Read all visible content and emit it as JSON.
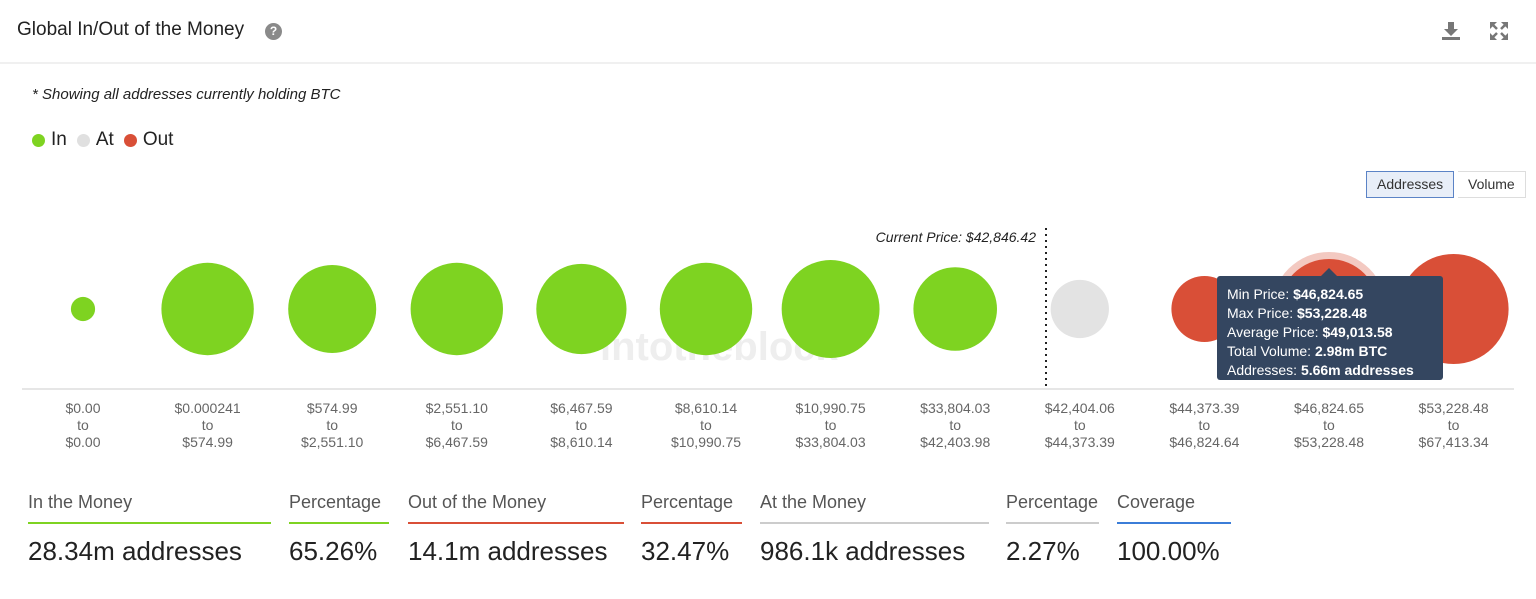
{
  "header": {
    "title": "Global In/Out of the Money",
    "help_icon": "question-circle-icon",
    "download_icon": "download-icon",
    "expand_icon": "expand-icon"
  },
  "note": "* Showing all addresses currently holding BTC",
  "legend": [
    {
      "label": "In",
      "color": "#7ed321"
    },
    {
      "label": "At",
      "color": "#e0e0e0"
    },
    {
      "label": "Out",
      "color": "#d94f37"
    }
  ],
  "toggles": {
    "addresses": "Addresses",
    "volume": "Volume"
  },
  "watermark": "intotheblock",
  "chart_data": {
    "type": "bubble",
    "current_price_label": "Current Price: $42,846.42",
    "current_price": 42846.42,
    "clusters": [
      {
        "from": "$0.00",
        "to": "$0.00",
        "status": "In",
        "relative_size": 0.22
      },
      {
        "from": "$0.000241",
        "to": "$574.99",
        "status": "In",
        "relative_size": 0.84
      },
      {
        "from": "$574.99",
        "to": "$2,551.10",
        "status": "In",
        "relative_size": 0.8
      },
      {
        "from": "$2,551.10",
        "to": "$6,467.59",
        "status": "In",
        "relative_size": 0.84
      },
      {
        "from": "$6,467.59",
        "to": "$8,610.14",
        "status": "In",
        "relative_size": 0.82
      },
      {
        "from": "$8,610.14",
        "to": "$10,990.75",
        "status": "In",
        "relative_size": 0.84
      },
      {
        "from": "$10,990.75",
        "to": "$33,804.03",
        "status": "In",
        "relative_size": 0.89
      },
      {
        "from": "$33,804.03",
        "to": "$42,403.98",
        "status": "In",
        "relative_size": 0.76
      },
      {
        "from": "$42,404.06",
        "to": "$44,373.39",
        "status": "At",
        "relative_size": 0.53
      },
      {
        "from": "$44,373.39",
        "to": "$46,824.64",
        "status": "Out",
        "relative_size": 0.6
      },
      {
        "from": "$46,824.65",
        "to": "$53,228.48",
        "status": "Out",
        "relative_size": 0.91,
        "highlighted": true
      },
      {
        "from": "$53,228.48",
        "to": "$67,413.34",
        "status": "Out",
        "relative_size": 1.0
      }
    ],
    "to_word": "to"
  },
  "tooltip": {
    "min_label": "Min Price: ",
    "min": "$46,824.65",
    "max_label": "Max Price: ",
    "max": "$53,228.48",
    "avg_label": "Average Price: ",
    "avg": "$49,013.58",
    "vol_label": "Total Volume: ",
    "vol": "2.98m BTC",
    "addr_label": "Addresses: ",
    "addr": "5.66m addresses"
  },
  "stats": [
    {
      "label": "In the Money",
      "value": "28.34m addresses",
      "color": "#7ed321"
    },
    {
      "label": "Percentage",
      "value": "65.26%",
      "color": "#7ed321"
    },
    {
      "label": "Out of the Money",
      "value": "14.1m addresses",
      "color": "#d94f37"
    },
    {
      "label": "Percentage",
      "value": "32.47%",
      "color": "#d94f37"
    },
    {
      "label": "At the Money",
      "value": "986.1k addresses",
      "color": "#cccccc"
    },
    {
      "label": "Percentage",
      "value": "2.27%",
      "color": "#cccccc"
    },
    {
      "label": "Coverage",
      "value": "100.00%",
      "color": "#3b7dd8"
    }
  ]
}
